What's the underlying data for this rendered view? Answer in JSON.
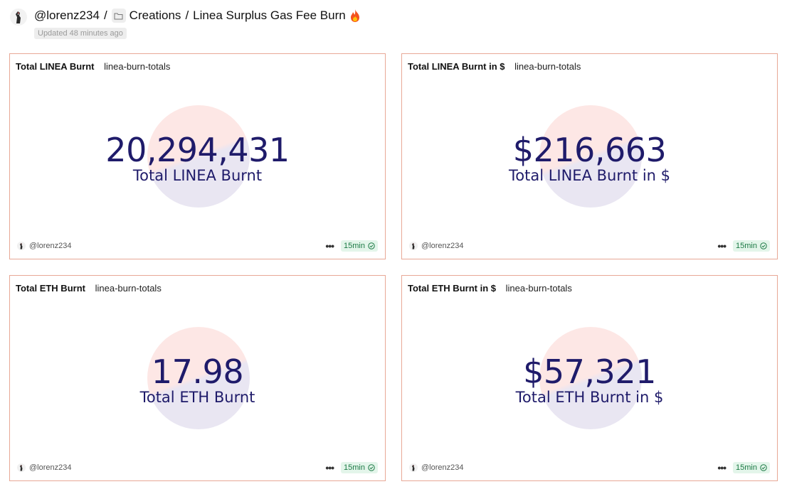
{
  "header": {
    "username": "@lorenz234",
    "separator": "/",
    "folder_label": "Creations",
    "dashboard_title": "Linea Surplus Gas Fee Burn",
    "updated_text": "Updated 48 minutes ago",
    "icons": [
      "avatar",
      "folder-icon",
      "fire-icon"
    ]
  },
  "cards": [
    {
      "title": "Total LINEA Burnt",
      "query": "linea-burn-totals",
      "value": "20,294,431",
      "label": "Total LINEA Burnt",
      "author": "@lorenz234",
      "refresh": "15min"
    },
    {
      "title": "Total LINEA Burnt in $",
      "query": "linea-burn-totals",
      "value": "$216,663",
      "label": "Total LINEA Burnt in $",
      "author": "@lorenz234",
      "refresh": "15min"
    },
    {
      "title": "Total ETH Burnt",
      "query": "linea-burn-totals",
      "value": "17.98",
      "label": "Total ETH Burnt",
      "author": "@lorenz234",
      "refresh": "15min"
    },
    {
      "title": "Total ETH Burnt in $",
      "query": "linea-burn-totals",
      "value": "$57,321",
      "label": "Total ETH Burnt in $",
      "author": "@lorenz234",
      "refresh": "15min"
    }
  ],
  "colors": {
    "card_border": "#e8a896",
    "value_text": "#1f1b6a",
    "circle_top": "#fde7e5",
    "circle_bottom": "#e9e6f2",
    "refresh_badge_bg": "#e3f5ea",
    "refresh_badge_text": "#1c7a45"
  }
}
